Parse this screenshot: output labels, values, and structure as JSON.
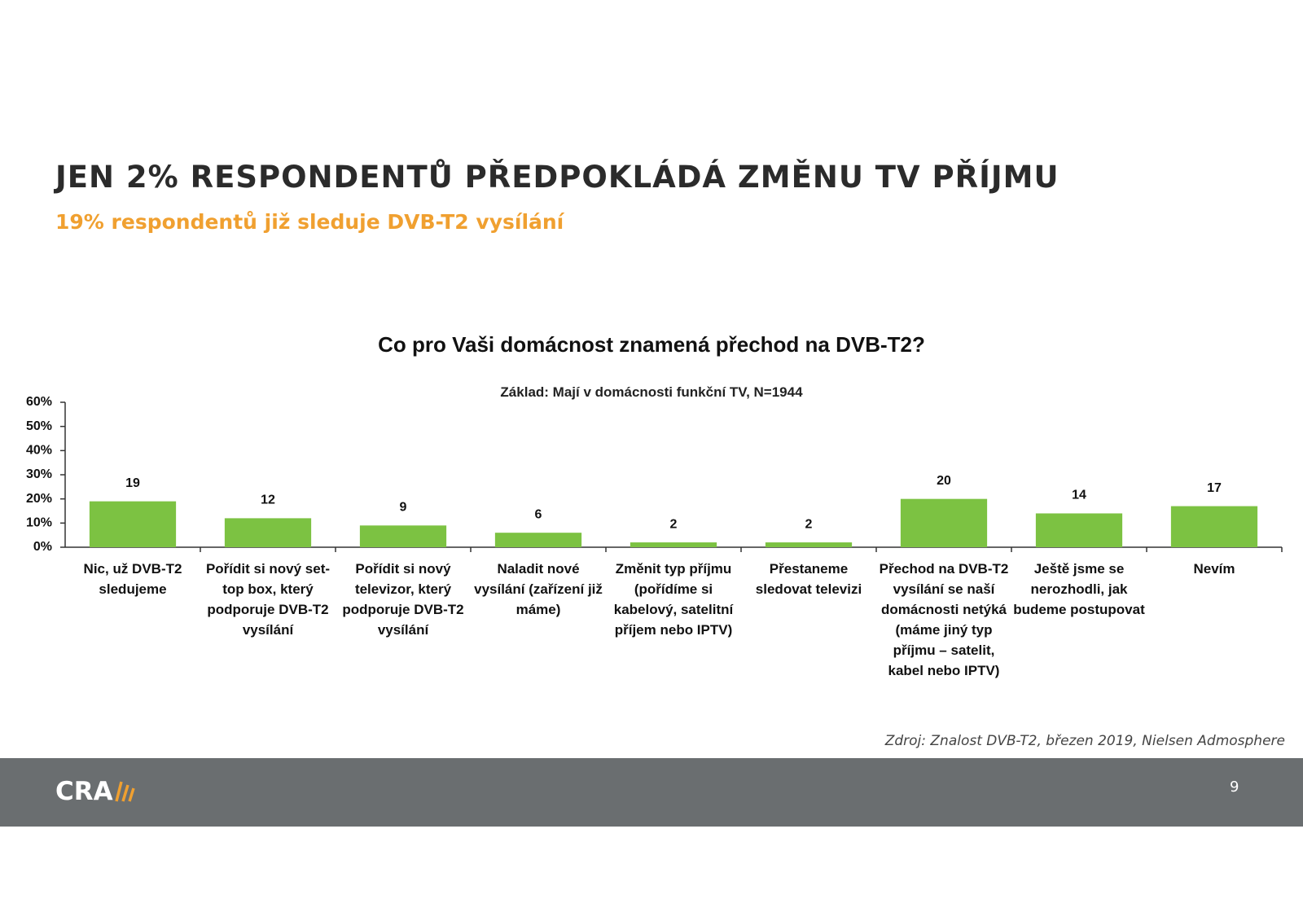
{
  "title": "JEN 2% RESPONDENTŮ PŘEDPOKLÁDÁ ZMĚNU TV PŘÍJMU",
  "subtitle": "19% respondentů již sleduje DVB-T2 vysílání",
  "chart_data": {
    "type": "bar",
    "title": "Co pro Vaši domácnost znamená přechod na DVB-T2?",
    "subtitle": "Základ: Mají v domácnosti funkční TV, N=1944",
    "categories": [
      "Nic, už DVB-T2 sledujeme",
      "Pořídit si nový set-top box, který podporuje DVB-T2 vysílání",
      "Pořídit si nový televizor, který podporuje DVB-T2 vysílání",
      "Naladit nové vysílání (zařízení již máme)",
      "Změnit typ příjmu (pořídíme si kabelový, satelitní příjem nebo IPTV)",
      "Přestaneme sledovat televizi",
      "Přechod na DVB-T2 vysílání se naší domácnosti netýká (máme jiný typ příjmu – satelit, kabel nebo IPTV)",
      "Ještě jsme se nerozhodli, jak budeme postupovat",
      "Nevím"
    ],
    "values": [
      19,
      12,
      9,
      6,
      2,
      2,
      20,
      14,
      17
    ],
    "color": "#7cc242",
    "ylim": [
      0,
      60
    ],
    "yticks": [
      {
        "value": 0,
        "label": "0%"
      },
      {
        "value": 10,
        "label": "10%"
      },
      {
        "value": 20,
        "label": "20%"
      },
      {
        "value": 30,
        "label": "30%"
      },
      {
        "value": 40,
        "label": "40%"
      },
      {
        "value": 50,
        "label": "50%"
      },
      {
        "value": 60,
        "label": "60%"
      }
    ],
    "grid": false
  },
  "source": "Zdroj: Znalost DVB-T2, březen 2019, Nielsen Admosphere",
  "footer": {
    "logo": "CRA",
    "page_number": "9"
  }
}
